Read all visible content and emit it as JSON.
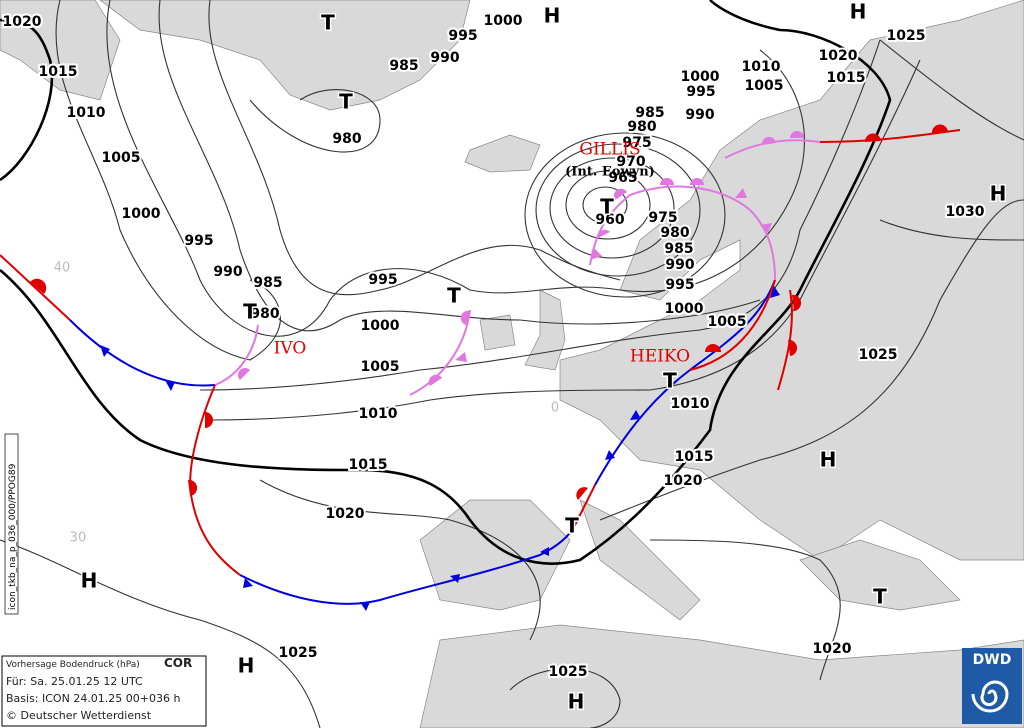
{
  "isobar_labels": [
    1020,
    1015,
    1010,
    1005,
    1000,
    995,
    990,
    985,
    980,
    995,
    1000,
    1005,
    1010,
    1015,
    1020,
    1025,
    1025,
    1020,
    1020,
    1015,
    1010,
    1005,
    1000,
    995,
    990,
    985,
    980,
    975,
    960,
    985,
    990,
    995,
    1000,
    980,
    985,
    980,
    975,
    970,
    965,
    1000,
    995,
    990,
    1010,
    1005,
    1020,
    1015,
    1025,
    1030,
    1025
  ],
  "pressure_centers": [
    "H",
    "H",
    "T",
    "T",
    "H",
    "T",
    "T",
    "T",
    "T",
    "T",
    "H",
    "T",
    "H",
    "H",
    "H"
  ],
  "storm_names": [
    "GILLIS",
    "(Int. Eowyn)",
    "IVO",
    "HEIKO"
  ],
  "grid_labels": [
    "40",
    "30",
    "0"
  ],
  "info_box": {
    "title": "Vorhersage Bodendruck (hPa)",
    "status": "COR",
    "valid": "Für:  Sa. 25.01.25  12 UTC",
    "basis": "Basis: ICON  24.01.25 00+036 h",
    "copyright": "© Deutscher Wetterdienst"
  },
  "side_label": "icon_tkb_na_p_036_000/PPOG89",
  "logo": "DWD"
}
